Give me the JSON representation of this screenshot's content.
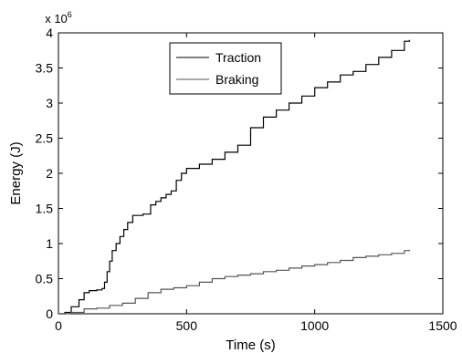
{
  "chart_data": {
    "type": "line",
    "xlabel": "Time (s)",
    "ylabel": "Energy (J)",
    "y_multiplier_label": {
      "prefix": "x 10",
      "exponent": "6"
    },
    "xlim": [
      0,
      1500
    ],
    "ylim": [
      0,
      4
    ],
    "xticks": [
      0,
      500,
      1000,
      1500
    ],
    "yticks": [
      0,
      0.5,
      1,
      1.5,
      2,
      2.5,
      3,
      3.5,
      4
    ],
    "xtick_labels": [
      "0",
      "500",
      "1000",
      "1500"
    ],
    "ytick_labels": [
      "0",
      "0.5",
      "1",
      "1.5",
      "2",
      "2.5",
      "3",
      "3.5",
      "4"
    ],
    "grid": false,
    "legend_position": "top-center",
    "series": [
      {
        "name": "Traction",
        "color": "#000000",
        "points": [
          [
            0,
            0
          ],
          [
            25,
            0.02
          ],
          [
            50,
            0.1
          ],
          [
            80,
            0.2
          ],
          [
            100,
            0.3
          ],
          [
            120,
            0.33
          ],
          [
            150,
            0.34
          ],
          [
            170,
            0.36
          ],
          [
            180,
            0.45
          ],
          [
            190,
            0.6
          ],
          [
            200,
            0.75
          ],
          [
            210,
            0.9
          ],
          [
            225,
            1.0
          ],
          [
            240,
            1.1
          ],
          [
            255,
            1.2
          ],
          [
            270,
            1.3
          ],
          [
            290,
            1.4
          ],
          [
            330,
            1.42
          ],
          [
            360,
            1.55
          ],
          [
            380,
            1.6
          ],
          [
            400,
            1.65
          ],
          [
            420,
            1.7
          ],
          [
            440,
            1.75
          ],
          [
            460,
            1.9
          ],
          [
            480,
            2.0
          ],
          [
            500,
            2.07
          ],
          [
            550,
            2.13
          ],
          [
            600,
            2.2
          ],
          [
            650,
            2.3
          ],
          [
            700,
            2.4
          ],
          [
            750,
            2.65
          ],
          [
            800,
            2.8
          ],
          [
            850,
            2.9
          ],
          [
            900,
            3.0
          ],
          [
            950,
            3.1
          ],
          [
            1000,
            3.22
          ],
          [
            1050,
            3.3
          ],
          [
            1100,
            3.4
          ],
          [
            1150,
            3.45
          ],
          [
            1200,
            3.55
          ],
          [
            1250,
            3.65
          ],
          [
            1300,
            3.75
          ],
          [
            1350,
            3.88
          ],
          [
            1370,
            3.9
          ]
        ]
      },
      {
        "name": "Braking",
        "color": "#555555",
        "points": [
          [
            0,
            0
          ],
          [
            50,
            0.02
          ],
          [
            100,
            0.07
          ],
          [
            150,
            0.08
          ],
          [
            200,
            0.12
          ],
          [
            250,
            0.15
          ],
          [
            300,
            0.22
          ],
          [
            350,
            0.3
          ],
          [
            400,
            0.35
          ],
          [
            450,
            0.37
          ],
          [
            500,
            0.4
          ],
          [
            550,
            0.45
          ],
          [
            600,
            0.5
          ],
          [
            650,
            0.53
          ],
          [
            700,
            0.55
          ],
          [
            750,
            0.57
          ],
          [
            800,
            0.6
          ],
          [
            850,
            0.62
          ],
          [
            900,
            0.65
          ],
          [
            950,
            0.68
          ],
          [
            1000,
            0.7
          ],
          [
            1050,
            0.73
          ],
          [
            1100,
            0.76
          ],
          [
            1150,
            0.8
          ],
          [
            1200,
            0.82
          ],
          [
            1250,
            0.84
          ],
          [
            1300,
            0.86
          ],
          [
            1350,
            0.9
          ],
          [
            1370,
            0.91
          ]
        ]
      }
    ]
  }
}
